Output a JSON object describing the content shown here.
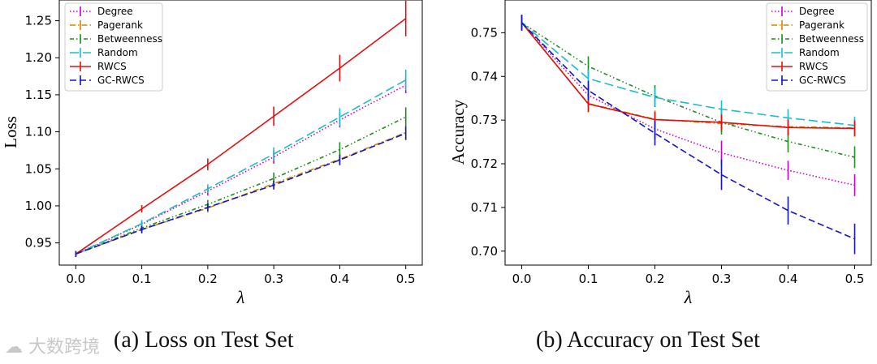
{
  "figures": [
    {
      "caption": "(a) Loss on Test Set",
      "chart_data": {
        "type": "line",
        "title": "",
        "xlabel": "λ",
        "ylabel": "Loss",
        "x": [
          0.0,
          0.1,
          0.2,
          0.3,
          0.4,
          0.5
        ],
        "xticks": [
          "0.0",
          "0.1",
          "0.2",
          "0.3",
          "0.4",
          "0.5"
        ],
        "yticks": [
          "0.95",
          "1.00",
          "1.05",
          "1.10",
          "1.15",
          "1.20",
          "1.25"
        ],
        "xlim": [
          -0.025,
          0.525
        ],
        "ylim": [
          0.92,
          1.278
        ],
        "legend_position": "top-left",
        "series": [
          {
            "name": "Degree",
            "color": "#cc00cc",
            "style": "dotted",
            "values": [
              0.935,
              0.975,
              1.02,
              1.066,
              1.116,
              1.163
            ],
            "err": [
              0.004,
              0.004,
              0.006,
              0.009,
              0.01,
              0.011
            ]
          },
          {
            "name": "Pagerank",
            "color": "#cc8800",
            "style": "dashdot",
            "values": [
              0.935,
              0.968,
              0.997,
              1.03,
              1.063,
              1.099
            ],
            "err": [
              0.004,
              0.005,
              0.006,
              0.007,
              0.008,
              0.01
            ]
          },
          {
            "name": "Betweenness",
            "color": "#228b22",
            "style": "dashdot2",
            "values": [
              0.935,
              0.97,
              1.002,
              1.037,
              1.076,
              1.12
            ],
            "err": [
              0.004,
              0.005,
              0.006,
              0.008,
              0.01,
              0.013
            ]
          },
          {
            "name": "Random",
            "color": "#1fbcc8",
            "style": "longdash",
            "values": [
              0.935,
              0.976,
              1.023,
              1.07,
              1.12,
              1.17
            ],
            "err": [
              0.004,
              0.005,
              0.006,
              0.009,
              0.012,
              0.014
            ]
          },
          {
            "name": "RWCS",
            "color": "#e01010",
            "style": "solid",
            "values": [
              0.935,
              0.996,
              1.056,
              1.121,
              1.186,
              1.253
            ],
            "err": [
              0.004,
              0.005,
              0.008,
              0.013,
              0.018,
              0.024
            ]
          },
          {
            "name": "GC-RWCS",
            "color": "#1414c8",
            "style": "dashed",
            "values": [
              0.935,
              0.968,
              0.998,
              1.028,
              1.062,
              1.098
            ],
            "err": [
              0.004,
              0.005,
              0.005,
              0.006,
              0.007,
              0.009
            ]
          }
        ]
      }
    },
    {
      "caption": "(b) Accuracy on Test Set",
      "chart_data": {
        "type": "line",
        "title": "",
        "xlabel": "λ",
        "ylabel": "Accuracy",
        "x": [
          0.0,
          0.1,
          0.2,
          0.3,
          0.4,
          0.5
        ],
        "xticks": [
          "0.0",
          "0.1",
          "0.2",
          "0.3",
          "0.4",
          "0.5"
        ],
        "yticks": [
          "0.70",
          "0.71",
          "0.72",
          "0.73",
          "0.74",
          "0.75"
        ],
        "xlim": [
          -0.025,
          0.525
        ],
        "ylim": [
          0.6968,
          0.7575
        ],
        "legend_position": "top-right",
        "series": [
          {
            "name": "Degree",
            "color": "#cc00cc",
            "style": "dotted",
            "values": [
              0.7523,
              0.7357,
              0.728,
              0.7225,
              0.7185,
              0.7151
            ],
            "err": [
              0.0018,
              0.0025,
              0.0025,
              0.0028,
              0.0022,
              0.0025
            ]
          },
          {
            "name": "Pagerank",
            "color": "#cc8800",
            "style": "dashdot",
            "values": [
              0.7523,
              0.7338,
              0.7302,
              0.7292,
              0.7285,
              0.7282
            ],
            "err": [
              0.0018,
              0.002,
              0.002,
              0.002,
              0.002,
              0.002
            ]
          },
          {
            "name": "Betweenness",
            "color": "#228b22",
            "style": "dashdot2",
            "values": [
              0.7523,
              0.7423,
              0.7355,
              0.7295,
              0.7251,
              0.7215
            ],
            "err": [
              0.0018,
              0.0023,
              0.0025,
              0.0028,
              0.0025,
              0.0025
            ]
          },
          {
            "name": "Random",
            "color": "#1fbcc8",
            "style": "longdash",
            "values": [
              0.7523,
              0.7395,
              0.7352,
              0.7325,
              0.7305,
              0.7288
            ],
            "err": [
              0.0018,
              0.002,
              0.002,
              0.002,
              0.002,
              0.002
            ]
          },
          {
            "name": "RWCS",
            "color": "#e01010",
            "style": "solid",
            "values": [
              0.7523,
              0.7337,
              0.7301,
              0.7295,
              0.7283,
              0.7281
            ],
            "err": [
              0.0018,
              0.0018,
              0.0018,
              0.0018,
              0.0018,
              0.0018
            ]
          },
          {
            "name": "GC-RWCS",
            "color": "#1414c8",
            "style": "dashed",
            "values": [
              0.7523,
              0.7368,
              0.727,
              0.7175,
              0.7093,
              0.7028
            ],
            "err": [
              0.0018,
              0.0022,
              0.0028,
              0.0035,
              0.0032,
              0.0035
            ]
          }
        ]
      }
    }
  ],
  "watermark": "大数跨境"
}
